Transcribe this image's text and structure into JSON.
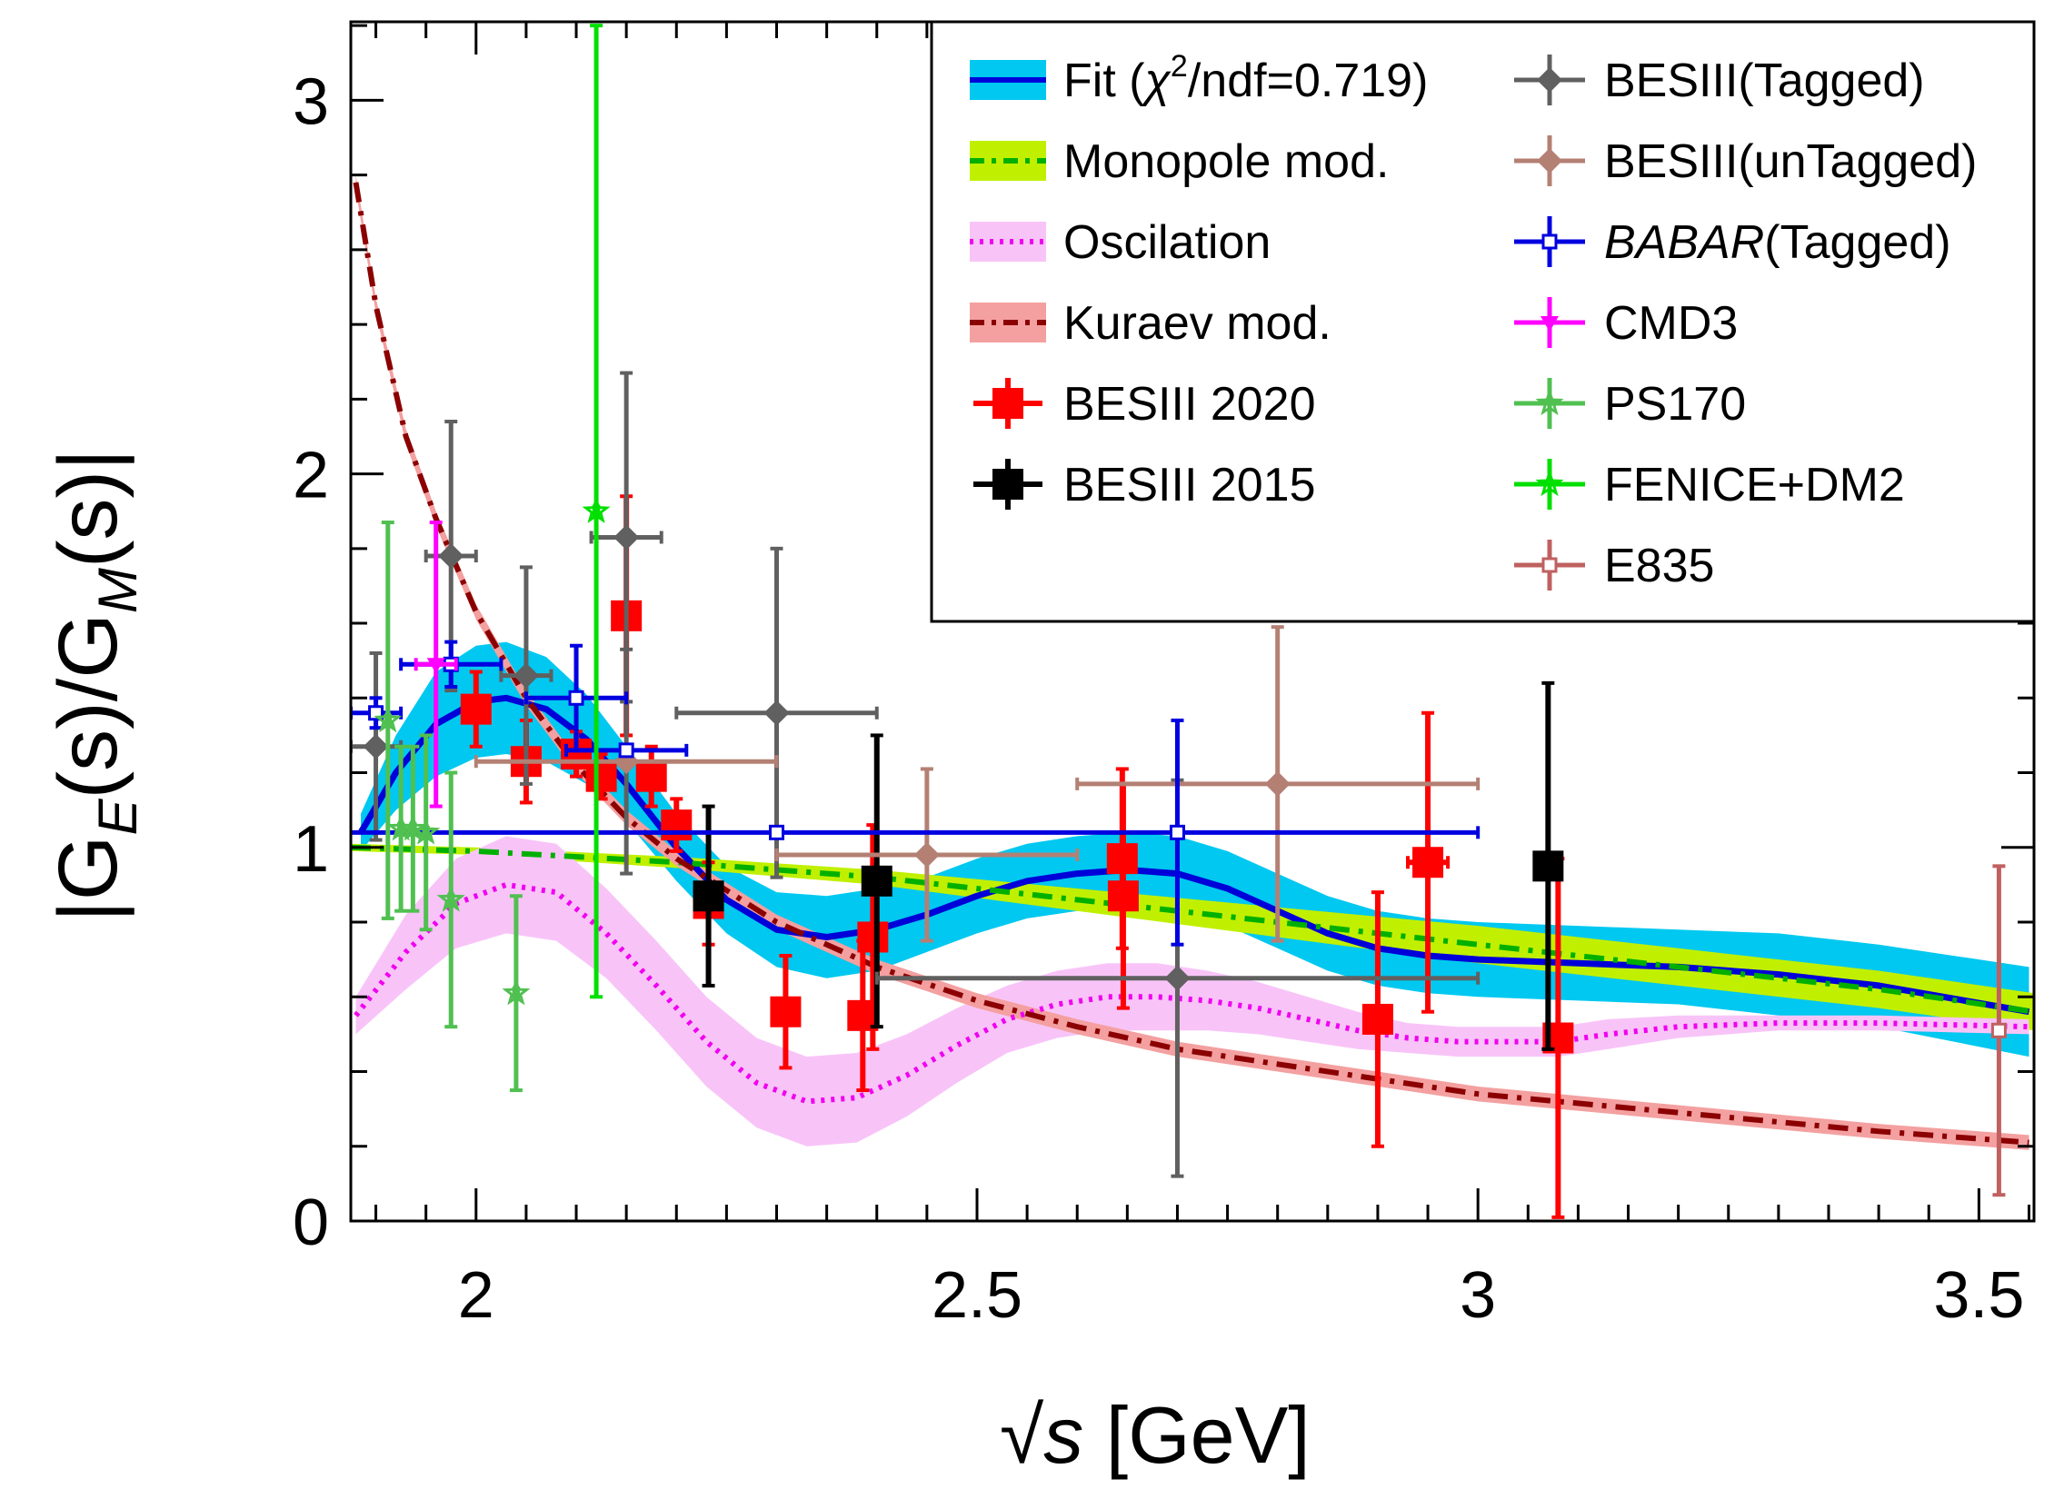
{
  "chart_data": {
    "type": "scatter",
    "xlabel": {
      "root": "√",
      "var": "s",
      "unit": " [GeV]"
    },
    "ylabel": {
      "open": "|G",
      "sub1": "E",
      "mid": "(s)/G",
      "sub2": "M",
      "close": "(s)|"
    },
    "xlim": [
      1.875,
      3.555
    ],
    "ylim": [
      0,
      3.21
    ],
    "xticks": [
      2,
      2.5,
      3,
      3.5
    ],
    "xtick_labels": [
      "2",
      "2.5",
      "3",
      "3.5"
    ],
    "yticks": [
      0,
      1,
      2,
      3
    ],
    "ytick_labels": [
      "0",
      "1",
      "2",
      "3"
    ],
    "curves": [
      {
        "name": "Fit",
        "color": "#0000d8",
        "band_color": "#00c8f0",
        "style": "solid",
        "x": [
          1.885,
          1.92,
          1.96,
          2.0,
          2.03,
          2.07,
          2.11,
          2.15,
          2.2,
          2.25,
          2.3,
          2.35,
          2.4,
          2.45,
          2.5,
          2.55,
          2.6,
          2.65,
          2.7,
          2.75,
          2.8,
          2.85,
          2.9,
          2.95,
          3.0,
          3.1,
          3.2,
          3.3,
          3.4,
          3.55
        ],
        "y": [
          1.04,
          1.2,
          1.33,
          1.39,
          1.4,
          1.37,
          1.29,
          1.17,
          1.0,
          0.86,
          0.78,
          0.76,
          0.78,
          0.82,
          0.87,
          0.91,
          0.93,
          0.94,
          0.93,
          0.89,
          0.83,
          0.77,
          0.73,
          0.71,
          0.7,
          0.69,
          0.68,
          0.66,
          0.63,
          0.56
        ],
        "band_half": [
          0.05,
          0.1,
          0.14,
          0.15,
          0.15,
          0.14,
          0.12,
          0.1,
          0.09,
          0.09,
          0.1,
          0.11,
          0.11,
          0.1,
          0.1,
          0.1,
          0.1,
          0.1,
          0.1,
          0.1,
          0.1,
          0.1,
          0.1,
          0.1,
          0.1,
          0.1,
          0.1,
          0.11,
          0.11,
          0.12
        ]
      },
      {
        "name": "Monopole mod.",
        "color": "#00b000",
        "band_color": "#c0f000",
        "style": "dashdot",
        "x": [
          1.875,
          2.0,
          2.2,
          2.4,
          2.6,
          2.8,
          3.0,
          3.2,
          3.4,
          3.555
        ],
        "y": [
          1.0,
          0.99,
          0.96,
          0.92,
          0.86,
          0.8,
          0.74,
          0.68,
          0.62,
          0.56
        ],
        "band_half": [
          0.01,
          0.01,
          0.015,
          0.02,
          0.03,
          0.04,
          0.05,
          0.05,
          0.05,
          0.05
        ]
      },
      {
        "name": "Oscilation",
        "color": "#f000f0",
        "band_color": "#f8c4f8",
        "style": "dotted",
        "x": [
          1.88,
          1.93,
          1.98,
          2.03,
          2.08,
          2.13,
          2.18,
          2.23,
          2.28,
          2.33,
          2.38,
          2.43,
          2.48,
          2.53,
          2.58,
          2.63,
          2.68,
          2.73,
          2.78,
          2.83,
          2.88,
          2.93,
          2.98,
          3.03,
          3.08,
          3.13,
          3.2,
          3.3,
          3.4,
          3.55
        ],
        "y": [
          0.55,
          0.72,
          0.85,
          0.9,
          0.88,
          0.77,
          0.63,
          0.48,
          0.37,
          0.32,
          0.33,
          0.39,
          0.47,
          0.54,
          0.58,
          0.6,
          0.6,
          0.59,
          0.57,
          0.54,
          0.51,
          0.49,
          0.48,
          0.48,
          0.48,
          0.5,
          0.52,
          0.53,
          0.53,
          0.52
        ],
        "band_half": [
          0.05,
          0.1,
          0.12,
          0.13,
          0.13,
          0.12,
          0.12,
          0.12,
          0.12,
          0.12,
          0.12,
          0.11,
          0.1,
          0.09,
          0.09,
          0.09,
          0.09,
          0.08,
          0.07,
          0.06,
          0.05,
          0.04,
          0.04,
          0.04,
          0.04,
          0.04,
          0.03,
          0.02,
          0.02,
          0.02
        ]
      },
      {
        "name": "Kuraev mod.",
        "color": "#8b0000",
        "band_color": "#f4a0a0",
        "style": "dashdot",
        "x": [
          1.88,
          1.9,
          1.93,
          1.96,
          2.0,
          2.05,
          2.1,
          2.15,
          2.2,
          2.3,
          2.4,
          2.5,
          2.6,
          2.7,
          2.8,
          3.0,
          3.2,
          3.4,
          3.55
        ],
        "y": [
          2.78,
          2.45,
          2.1,
          1.88,
          1.63,
          1.4,
          1.22,
          1.08,
          0.97,
          0.8,
          0.68,
          0.59,
          0.52,
          0.46,
          0.42,
          0.34,
          0.29,
          0.24,
          0.21
        ],
        "band_half": [
          0.02,
          0.02,
          0.02,
          0.02,
          0.02,
          0.02,
          0.02,
          0.02,
          0.02,
          0.02,
          0.02,
          0.02,
          0.02,
          0.02,
          0.02,
          0.02,
          0.02,
          0.02,
          0.02
        ]
      }
    ],
    "series": [
      {
        "name": "BESIII 2020",
        "color": "#ff0000",
        "marker": "filled-square",
        "points": [
          {
            "x": 2.0,
            "y": 1.37,
            "ex": 0.007,
            "ey": 0.1
          },
          {
            "x": 2.05,
            "y": 1.23,
            "ex": 0.007,
            "ey": 0.11
          },
          {
            "x": 2.1,
            "y": 1.25,
            "ex": 0.007,
            "ey": 0.06
          },
          {
            "x": 2.125,
            "y": 1.19,
            "ex": 0.007,
            "ey": 0.06
          },
          {
            "x": 2.15,
            "y": 1.62,
            "ex": 0.007,
            "ey": 0.32
          },
          {
            "x": 2.175,
            "y": 1.19,
            "ex": 0.007,
            "ey": 0.08
          },
          {
            "x": 2.2,
            "y": 1.06,
            "ex": 0.007,
            "ey": 0.07
          },
          {
            "x": 2.232,
            "y": 0.85,
            "ex": 0.007,
            "ey": 0.11
          },
          {
            "x": 2.309,
            "y": 0.56,
            "ex": 0.007,
            "ey": 0.15
          },
          {
            "x": 2.386,
            "y": 0.55,
            "ex": 0.007,
            "ey": 0.2
          },
          {
            "x": 2.396,
            "y": 0.76,
            "ex": 0.007,
            "ey": 0.3
          },
          {
            "x": 2.645,
            "y": 0.97,
            "ex": 0.007,
            "ey": 0.24
          },
          {
            "x": 2.646,
            "y": 0.87,
            "ex": 0.007,
            "ey": 0.3
          },
          {
            "x": 2.9,
            "y": 0.54,
            "ex": 0.007,
            "ey": 0.34
          },
          {
            "x": 2.95,
            "y": 0.96,
            "ex": 0.02,
            "ey": 0.4
          },
          {
            "x": 3.08,
            "y": 0.49,
            "ex": 0.007,
            "ey": 0.48
          }
        ]
      },
      {
        "name": "BESIII 2015",
        "color": "#000000",
        "marker": "filled-square",
        "points": [
          {
            "x": 2.232,
            "y": 0.87,
            "ex": 0.0,
            "ey": 0.24
          },
          {
            "x": 2.4,
            "y": 0.91,
            "ex": 0.005,
            "ey": 0.39
          },
          {
            "x": 3.07,
            "y": 0.95,
            "ex": 0.005,
            "ey": 0.49
          }
        ]
      },
      {
        "name": "BESIII(Tagged)",
        "color": "#606060",
        "marker": "filled-diamond",
        "points": [
          {
            "x": 1.9,
            "y": 1.27,
            "ex": 0.025,
            "ey": 0.25
          },
          {
            "x": 1.975,
            "y": 1.78,
            "ex": 0.025,
            "ey": 0.36
          },
          {
            "x": 2.05,
            "y": 1.46,
            "ex": 0.025,
            "ey": 0.29
          },
          {
            "x": 2.15,
            "y": 1.83,
            "ex": 0.035,
            "ey": 0.44
          },
          {
            "x": 2.15,
            "y": 1.23,
            "ex": 0.0,
            "ey": 0.3
          },
          {
            "x": 2.3,
            "y": 1.36,
            "ex": 0.1,
            "ey": 0.44
          },
          {
            "x": 2.7,
            "y": 0.65,
            "ex": 0.3,
            "ey": 0.53
          }
        ]
      },
      {
        "name": "BESIII(unTagged)",
        "color": "#b48074",
        "marker": "filled-diamond",
        "points": [
          {
            "x": 2.15,
            "y": 1.23,
            "ex": 0.15,
            "ey": 0.0
          },
          {
            "x": 2.45,
            "y": 0.98,
            "ex": 0.15,
            "ey": 0.23
          },
          {
            "x": 2.8,
            "y": 1.17,
            "ex": 0.2,
            "ey": 0.42
          }
        ]
      },
      {
        "name": "BABAR(Tagged)",
        "color": "#0000e0",
        "marker": "open-square",
        "points": [
          {
            "x": 1.9,
            "y": 1.36,
            "ex": 0.025,
            "ey": 0.04
          },
          {
            "x": 1.975,
            "y": 1.49,
            "ex": 0.05,
            "ey": 0.06
          },
          {
            "x": 2.1,
            "y": 1.4,
            "ex": 0.05,
            "ey": 0.14
          },
          {
            "x": 2.15,
            "y": 1.26,
            "ex": 0.06,
            "ey": 0.0
          },
          {
            "x": 2.3,
            "y": 1.04,
            "ex": 0.7,
            "ey": 0.0
          },
          {
            "x": 2.7,
            "y": 1.04,
            "ex": 0.0,
            "ey": 0.3
          }
        ]
      },
      {
        "name": "CMD3",
        "color": "#ff00ff",
        "marker": "triangle",
        "points": [
          {
            "x": 1.96,
            "y": 1.49,
            "ex": 0.02,
            "ey": 0.38
          }
        ]
      },
      {
        "name": "PS170",
        "color": "#50c050",
        "marker": "star",
        "points": [
          {
            "x": 1.912,
            "y": 1.34,
            "ex": 0.002,
            "ey": 0.53
          },
          {
            "x": 1.925,
            "y": 1.05,
            "ex": 0.002,
            "ey": 0.22
          },
          {
            "x": 1.937,
            "y": 1.05,
            "ex": 0.002,
            "ey": 0.22
          },
          {
            "x": 1.95,
            "y": 1.04,
            "ex": 0.002,
            "ey": 0.26
          },
          {
            "x": 1.975,
            "y": 0.86,
            "ex": 0.002,
            "ey": 0.34
          },
          {
            "x": 2.04,
            "y": 0.61,
            "ex": 0.002,
            "ey": 0.26
          }
        ]
      },
      {
        "name": "FENICE+DM2",
        "color": "#00e000",
        "marker": "star",
        "points": [
          {
            "x": 2.12,
            "y": 1.9,
            "ex": 0.002,
            "ey": 1.3
          }
        ]
      },
      {
        "name": "E835",
        "color": "#c06060",
        "marker": "open-square",
        "points": [
          {
            "x": 3.52,
            "y": 0.51,
            "ex": 0.002,
            "ey": 0.44
          }
        ]
      }
    ],
    "legend": {
      "placement": "top-right",
      "left_entries": [
        {
          "label": "Fit (",
          "chi": "χ",
          "sup": "2",
          "rest": "/ndf=0.719)",
          "kind": "band",
          "band_color": "#00c8f0",
          "line_color": "#0000d8",
          "style": "solid"
        },
        {
          "label": "Monopole mod.",
          "kind": "band",
          "band_color": "#c0f000",
          "line_color": "#00b000",
          "style": "dashdot"
        },
        {
          "label": "Oscilation",
          "kind": "band",
          "band_color": "#f8c4f8",
          "line_color": "#f000f0",
          "style": "dotted"
        },
        {
          "label": "Kuraev mod.",
          "kind": "band",
          "band_color": "#f4a0a0",
          "line_color": "#8b0000",
          "style": "dashdot"
        },
        {
          "label": "BESIII 2020",
          "kind": "marker",
          "color": "#ff0000",
          "marker": "filled-square"
        },
        {
          "label": "BESIII 2015",
          "kind": "marker",
          "color": "#000000",
          "marker": "filled-square"
        }
      ],
      "right_entries": [
        {
          "label": "BESIII(Tagged)",
          "color": "#606060",
          "marker": "filled-diamond"
        },
        {
          "label": "BESIII(unTagged)",
          "color": "#b48074",
          "marker": "filled-diamond"
        },
        {
          "label": "BABAR",
          "suffix": "(Tagged)",
          "italic_part": true,
          "color": "#0000e0",
          "marker": "open-square"
        },
        {
          "label": "CMD3",
          "color": "#ff00ff",
          "marker": "triangle"
        },
        {
          "label": "PS170",
          "color": "#50c050",
          "marker": "star"
        },
        {
          "label": "FENICE+DM2",
          "color": "#00e000",
          "marker": "star"
        },
        {
          "label": "E835",
          "color": "#c06060",
          "marker": "open-square"
        }
      ]
    }
  }
}
